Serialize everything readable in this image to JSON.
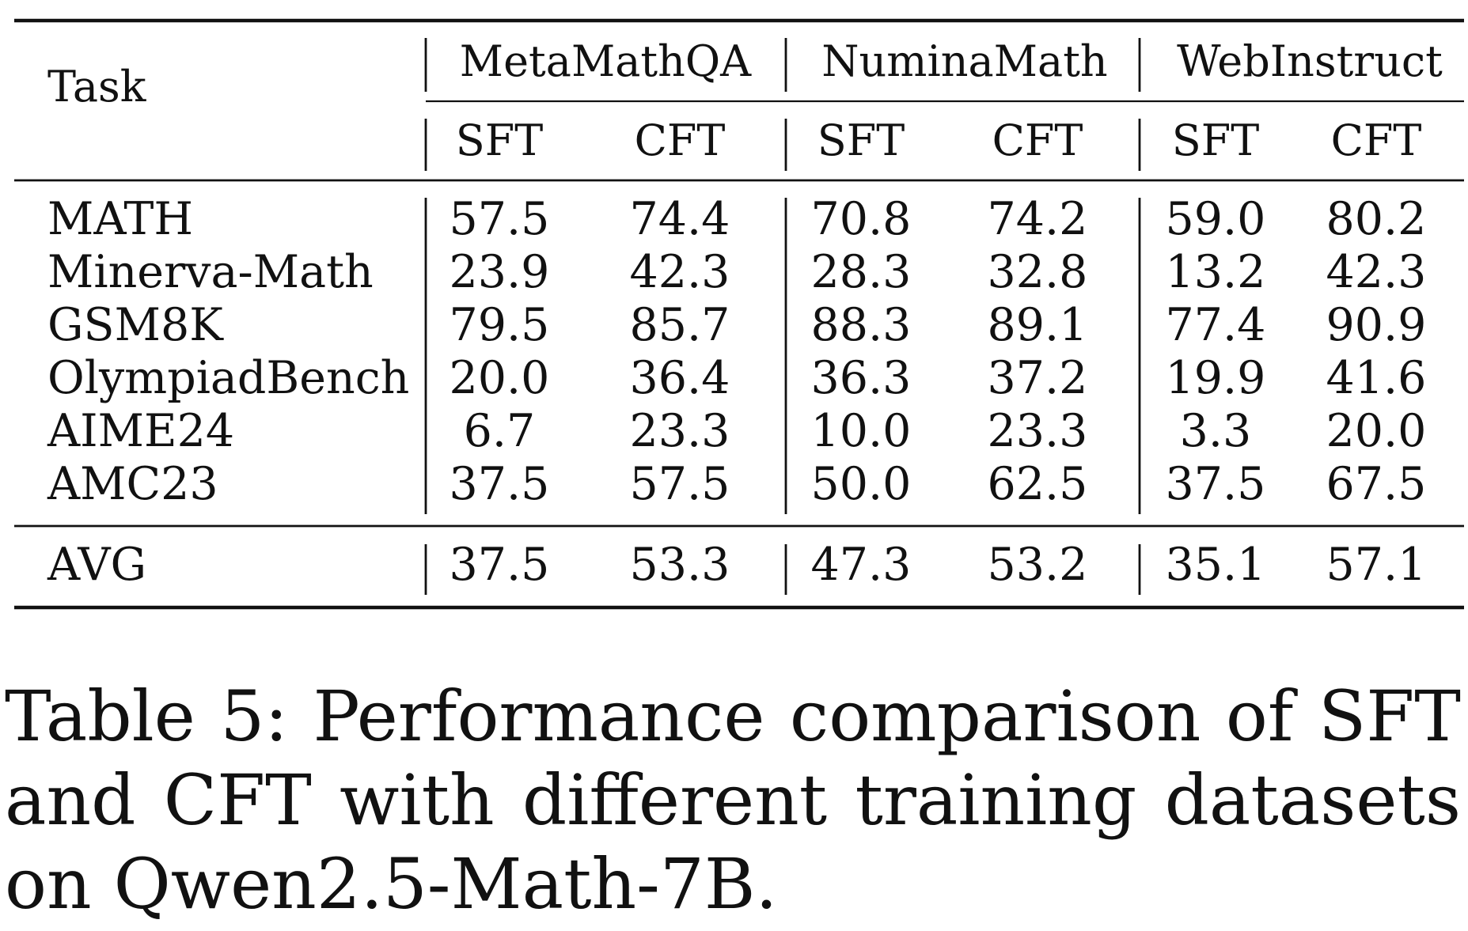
{
  "table": {
    "row_header": "Task",
    "groups": [
      "MetaMathQA",
      "NuminaMath",
      "WebInstruct"
    ],
    "subcolumns": [
      "SFT",
      "CFT",
      "SFT",
      "CFT",
      "SFT",
      "CFT"
    ],
    "rows": [
      {
        "task": "MATH",
        "values": [
          "57.5",
          "74.4",
          "70.8",
          "74.2",
          "59.0",
          "80.2"
        ]
      },
      {
        "task": "Minerva-Math",
        "values": [
          "23.9",
          "42.3",
          "28.3",
          "32.8",
          "13.2",
          "42.3"
        ]
      },
      {
        "task": "GSM8K",
        "values": [
          "79.5",
          "85.7",
          "88.3",
          "89.1",
          "77.4",
          "90.9"
        ]
      },
      {
        "task": "OlympiadBench",
        "values": [
          "20.0",
          "36.4",
          "36.3",
          "37.2",
          "19.9",
          "41.6"
        ]
      },
      {
        "task": "AIME24",
        "values": [
          "6.7",
          "23.3",
          "10.0",
          "23.3",
          "3.3",
          "20.0"
        ]
      },
      {
        "task": "AMC23",
        "values": [
          "37.5",
          "57.5",
          "50.0",
          "62.5",
          "37.5",
          "67.5"
        ]
      }
    ],
    "avg_row": {
      "task": "AVG",
      "values": [
        "37.5",
        "53.3",
        "47.3",
        "53.2",
        "35.1",
        "57.1"
      ]
    }
  },
  "caption": "Table 5: Performance comparison of SFT and CFT with different training datasets on Qwen2.5-Math-7B."
}
